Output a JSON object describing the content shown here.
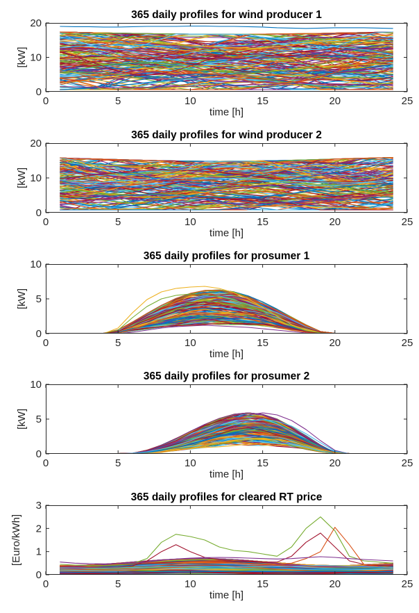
{
  "chart_data": [
    {
      "type": "line",
      "title": "365 daily profiles for wind producer 1",
      "xlabel": "time [h]",
      "ylabel": "[kW]",
      "xlim": [
        0,
        25
      ],
      "ylim": [
        0,
        20
      ],
      "xticks": [
        "0",
        "5",
        "10",
        "15",
        "20",
        "25"
      ],
      "yticks": [
        "0",
        "10",
        "20"
      ],
      "series_count": 365,
      "x": [
        1,
        2,
        3,
        4,
        5,
        6,
        7,
        8,
        9,
        10,
        11,
        12,
        13,
        14,
        15,
        16,
        17,
        18,
        19,
        20,
        21,
        22,
        23,
        24
      ],
      "series": [
        {
          "values": [
            19,
            18.9,
            18.9,
            18.8,
            18.8,
            18.9,
            19,
            19,
            19,
            19.1,
            19.1,
            19,
            19,
            18.9,
            18.8,
            18.6,
            18.5,
            18.4,
            18.5,
            18.6,
            18.6,
            18.6,
            18.5,
            18.4
          ]
        },
        {
          "values": [
            16.5,
            16.2,
            15.8,
            15.5,
            15.2,
            14.8,
            14.5,
            14.2,
            13.9,
            13.6,
            13.2,
            13,
            12.8,
            12.6,
            12.8,
            13.1,
            13.6,
            14.2,
            14.8,
            15.3,
            15.7,
            16,
            16.2,
            16.3
          ]
        },
        {
          "values": [
            12,
            11.5,
            11,
            10.4,
            9.8,
            9.2,
            8.6,
            8,
            7.4,
            6.8,
            6.2,
            5.8,
            5.5,
            5.4,
            5.6,
            6,
            6.6,
            7.3,
            8,
            8.7,
            9.3,
            9.8,
            10.2,
            10.5
          ]
        },
        {
          "values": [
            8,
            8.3,
            8.6,
            8.9,
            9.2,
            9.5,
            9.8,
            10,
            10.2,
            10.4,
            10.6,
            10.7,
            10.8,
            10.8,
            10.7,
            10.6,
            10.4,
            10.2,
            10,
            9.8,
            9.6,
            9.4,
            9.2,
            9
          ]
        },
        {
          "values": [
            4,
            4.2,
            4.5,
            4.9,
            5.3,
            5.6,
            5.8,
            5.9,
            5.8,
            5.6,
            5.3,
            5,
            4.8,
            4.6,
            4.6,
            4.8,
            5.2,
            5.8,
            6.5,
            7.2,
            7.8,
            8.3,
            8.6,
            8.8
          ]
        },
        {
          "values": [
            1.5,
            1.4,
            1.3,
            1.3,
            1.2,
            1.2,
            1.3,
            1.4,
            1.5,
            1.6,
            1.7,
            1.8,
            1.9,
            2,
            2.1,
            2.2,
            2.3,
            2.4,
            2.4,
            2.3,
            2.2,
            2,
            1.9,
            1.8
          ]
        }
      ]
    },
    {
      "type": "line",
      "title": "365 daily profiles for wind producer 2",
      "xlabel": "time [h]",
      "ylabel": "[kW]",
      "xlim": [
        0,
        25
      ],
      "ylim": [
        0,
        20
      ],
      "xticks": [
        "0",
        "5",
        "10",
        "15",
        "20",
        "25"
      ],
      "yticks": [
        "0",
        "10",
        "20"
      ],
      "series_count": 365,
      "x": [
        1,
        2,
        3,
        4,
        5,
        6,
        7,
        8,
        9,
        10,
        11,
        12,
        13,
        14,
        15,
        16,
        17,
        18,
        19,
        20,
        21,
        22,
        23,
        24
      ],
      "series": [
        {
          "values": [
            15.8,
            15.6,
            15.4,
            15.2,
            15,
            14.8,
            14.6,
            14.5,
            14.4,
            14.3,
            14.2,
            14.1,
            14,
            14,
            14.1,
            14.3,
            14.6,
            14.9,
            15.2,
            15.4,
            15.6,
            15.7,
            15.8,
            15.8
          ]
        },
        {
          "values": [
            12,
            11.6,
            11.2,
            10.8,
            10.4,
            10,
            9.6,
            9.2,
            8.8,
            8.4,
            8.1,
            7.8,
            7.6,
            7.5,
            7.6,
            7.9,
            8.4,
            9,
            9.7,
            10.4,
            11,
            11.5,
            11.8,
            12
          ]
        },
        {
          "values": [
            8,
            8.2,
            8.5,
            8.8,
            9.1,
            9.4,
            9.6,
            9.8,
            9.9,
            10,
            10,
            9.9,
            9.8,
            9.6,
            9.4,
            9.2,
            9,
            8.8,
            8.7,
            8.6,
            8.6,
            8.7,
            8.8,
            9
          ]
        },
        {
          "values": [
            4,
            4.1,
            4.3,
            4.6,
            4.9,
            5.1,
            5.2,
            5.2,
            5.1,
            4.9,
            4.7,
            4.5,
            4.4,
            4.4,
            4.6,
            5,
            5.5,
            6.1,
            6.7,
            7.2,
            7.6,
            7.9,
            8,
            8.1
          ]
        },
        {
          "values": [
            1.2,
            1.1,
            1.1,
            1,
            1,
            1.1,
            1.2,
            1.3,
            1.4,
            1.5,
            1.6,
            1.7,
            1.7,
            1.8,
            1.8,
            1.8,
            1.8,
            1.7,
            1.6,
            1.5,
            1.4,
            1.3,
            1.2,
            1.2
          ]
        }
      ]
    },
    {
      "type": "line",
      "title": "365 daily profiles for prosumer 1",
      "xlabel": "time [h]",
      "ylabel": "[kW]",
      "xlim": [
        0,
        25
      ],
      "ylim": [
        0,
        10
      ],
      "xticks": [
        "0",
        "5",
        "10",
        "15",
        "20",
        "25"
      ],
      "yticks": [
        "0",
        "5",
        "10"
      ],
      "series_count": 365,
      "x": [
        1,
        2,
        3,
        4,
        5,
        6,
        7,
        8,
        9,
        10,
        11,
        12,
        13,
        14,
        15,
        16,
        17,
        18,
        19,
        20,
        21,
        22,
        23,
        24
      ],
      "series": [
        {
          "values": [
            0,
            0,
            0,
            0,
            0.8,
            3,
            4.9,
            6,
            6.5,
            6.7,
            6.8,
            6.5,
            5.9,
            5,
            3.8,
            2.5,
            1.3,
            0.5,
            0.1,
            0,
            0,
            0,
            0,
            0
          ]
        },
        {
          "values": [
            0,
            0,
            0,
            0,
            0.5,
            2.3,
            3.9,
            5,
            5.5,
            5.7,
            5.6,
            5.3,
            4.8,
            4.1,
            3.2,
            2.1,
            1.1,
            0.4,
            0.1,
            0,
            0,
            0,
            0,
            0
          ]
        },
        {
          "values": [
            0,
            0,
            0,
            0,
            0.3,
            1.4,
            2.6,
            3.6,
            4.2,
            4.5,
            4.5,
            4.2,
            3.7,
            3.1,
            2.4,
            1.6,
            0.8,
            0.3,
            0,
            0,
            0,
            0,
            0,
            0
          ]
        },
        {
          "values": [
            0,
            0,
            0,
            0,
            0.1,
            0.6,
            1.3,
            2,
            2.5,
            2.8,
            2.9,
            2.8,
            2.5,
            2.1,
            1.6,
            1.1,
            0.5,
            0.2,
            0,
            0,
            0,
            0,
            0,
            0
          ]
        },
        {
          "values": [
            0,
            0,
            0,
            0,
            0,
            0.2,
            0.5,
            0.8,
            1,
            1.1,
            1.2,
            1.1,
            1,
            0.9,
            0.7,
            0.5,
            0.3,
            0.1,
            0,
            0,
            0,
            0,
            0,
            0
          ]
        }
      ]
    },
    {
      "type": "line",
      "title": "365 daily profiles for prosumer 2",
      "xlabel": "time [h]",
      "ylabel": "[kW]",
      "xlim": [
        0,
        25
      ],
      "ylim": [
        0,
        10
      ],
      "xticks": [
        "0",
        "5",
        "10",
        "15",
        "20",
        "25"
      ],
      "yticks": [
        "0",
        "5",
        "10"
      ],
      "series_count": 365,
      "x": [
        1,
        2,
        3,
        4,
        5,
        6,
        7,
        8,
        9,
        10,
        11,
        12,
        13,
        14,
        15,
        16,
        17,
        18,
        19,
        20,
        21,
        22,
        23,
        24
      ],
      "series": [
        {
          "values": [
            0,
            0,
            0,
            0,
            0,
            0.1,
            0.4,
            0.9,
            1.6,
            2.4,
            3.3,
            4.2,
            5,
            5.6,
            5.9,
            5.6,
            4.8,
            3.5,
            1.9,
            0.5,
            0,
            0,
            0,
            0
          ]
        },
        {
          "values": [
            0,
            0,
            0,
            0,
            0,
            0.1,
            0.3,
            0.7,
            1.2,
            1.9,
            2.7,
            3.5,
            4.2,
            4.7,
            4.9,
            4.7,
            4,
            2.9,
            1.6,
            0.4,
            0,
            0,
            0,
            0
          ]
        },
        {
          "values": [
            0,
            0,
            0,
            0,
            0,
            0,
            0.2,
            0.5,
            0.9,
            1.4,
            2,
            2.6,
            3.1,
            3.5,
            3.6,
            3.4,
            2.9,
            2.1,
            1.1,
            0.3,
            0,
            0,
            0,
            0
          ]
        },
        {
          "values": [
            0,
            0,
            0,
            0,
            0,
            0,
            0.1,
            0.2,
            0.5,
            0.8,
            1.2,
            1.6,
            1.9,
            2.1,
            2.2,
            2,
            1.7,
            1.2,
            0.6,
            0.2,
            0,
            0,
            0,
            0
          ]
        }
      ]
    },
    {
      "type": "line",
      "title": "365 daily profiles for cleared RT price",
      "xlabel": "time [h]",
      "ylabel": "[Euro/kWh]",
      "xlim": [
        0,
        25
      ],
      "ylim": [
        0,
        3
      ],
      "xticks": [
        "0",
        "5",
        "10",
        "15",
        "20",
        "25"
      ],
      "yticks": [
        "0",
        "1",
        "2",
        "3"
      ],
      "series_count": 365,
      "x": [
        1,
        2,
        3,
        4,
        5,
        6,
        7,
        8,
        9,
        10,
        11,
        12,
        13,
        14,
        15,
        16,
        17,
        18,
        19,
        20,
        21,
        22,
        23,
        24
      ],
      "series": [
        {
          "values": [
            0.45,
            0.42,
            0.4,
            0.4,
            0.42,
            0.48,
            0.7,
            1.4,
            1.75,
            1.65,
            1.5,
            1.2,
            1.05,
            1,
            0.9,
            0.8,
            1.2,
            2,
            2.5,
            1.9,
            0.8,
            0.6,
            0.55,
            0.5
          ]
        },
        {
          "values": [
            0.35,
            0.33,
            0.32,
            0.32,
            0.33,
            0.38,
            0.6,
            1,
            1.3,
            1,
            0.75,
            0.65,
            0.6,
            0.6,
            0.55,
            0.55,
            0.8,
            1.4,
            1.8,
            1.2,
            0.6,
            0.45,
            0.4,
            0.38
          ]
        },
        {
          "values": [
            0.25,
            0.24,
            0.23,
            0.23,
            0.24,
            0.27,
            0.33,
            0.4,
            0.45,
            0.5,
            0.5,
            0.5,
            0.5,
            0.48,
            0.46,
            0.45,
            0.5,
            0.7,
            1,
            2.05,
            1.3,
            0.45,
            0.35,
            0.3
          ]
        },
        {
          "values": [
            0.55,
            0.5,
            0.48,
            0.47,
            0.48,
            0.5,
            0.55,
            0.62,
            0.68,
            0.72,
            0.74,
            0.75,
            0.74,
            0.72,
            0.7,
            0.68,
            0.7,
            0.74,
            0.78,
            0.75,
            0.7,
            0.66,
            0.63,
            0.6
          ]
        },
        {
          "values": [
            0.3,
            0.3,
            0.29,
            0.29,
            0.3,
            0.31,
            0.33,
            0.35,
            0.36,
            0.37,
            0.37,
            0.37,
            0.36,
            0.36,
            0.35,
            0.35,
            0.36,
            0.38,
            0.4,
            0.39,
            0.37,
            0.35,
            0.33,
            0.32
          ]
        },
        {
          "values": [
            0.12,
            0.12,
            0.11,
            0.11,
            0.11,
            0.12,
            0.13,
            0.14,
            0.14,
            0.15,
            0.15,
            0.15,
            0.15,
            0.14,
            0.14,
            0.14,
            0.14,
            0.15,
            0.16,
            0.16,
            0.15,
            0.14,
            0.13,
            0.13
          ]
        }
      ]
    }
  ],
  "colors": {
    "palette": [
      "#0072bd",
      "#d95319",
      "#edb120",
      "#7e2f8e",
      "#77ac30",
      "#4dbeee",
      "#a2142f"
    ],
    "axes": "#262626",
    "background": "#ffffff"
  }
}
